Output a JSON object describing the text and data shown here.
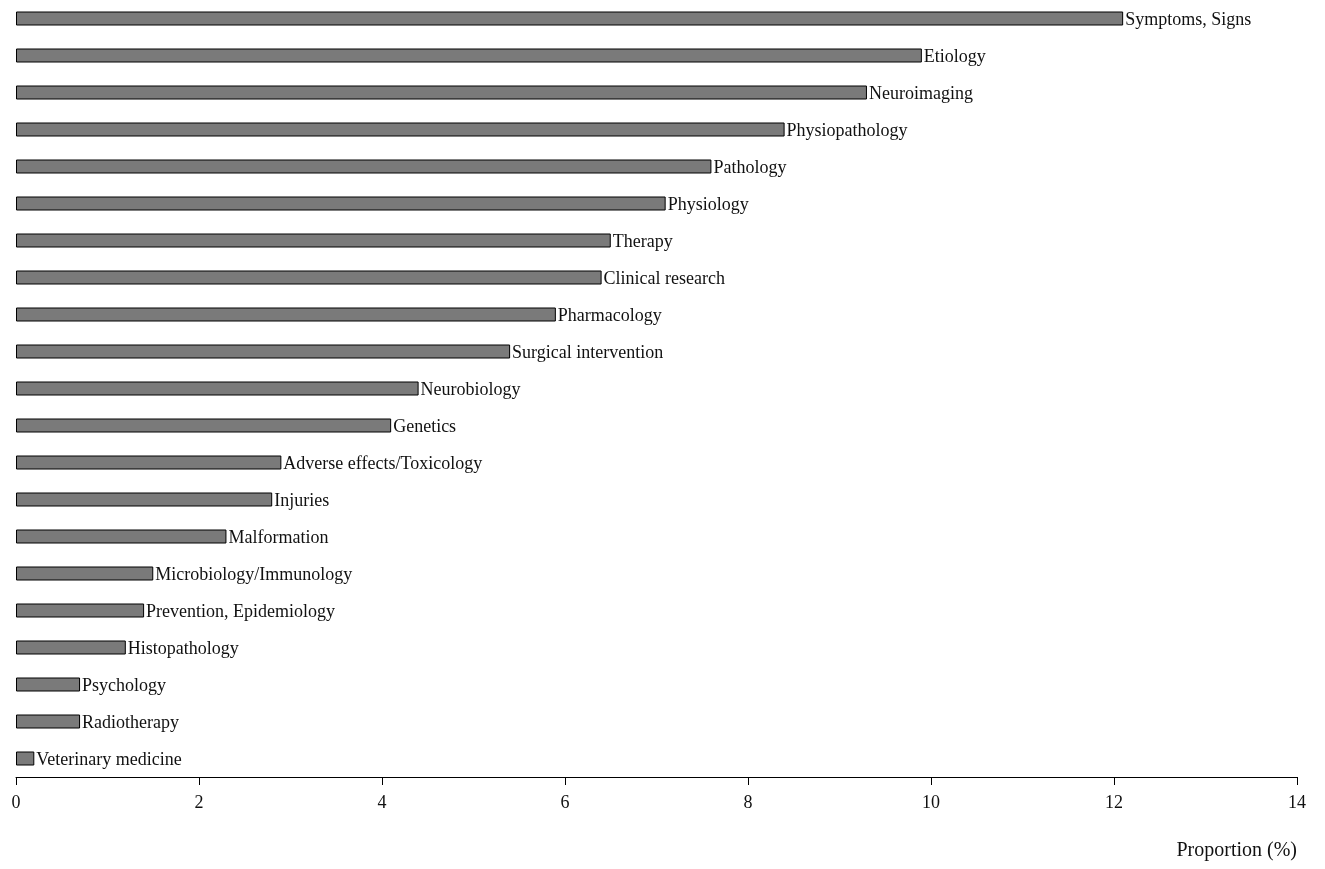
{
  "chart_data": {
    "type": "bar",
    "orientation": "horizontal",
    "xlabel": "Proportion (%)",
    "categories": [
      "Symptoms, Signs",
      "Etiology",
      "Neuroimaging",
      "Physiopathology",
      "Pathology",
      "Physiology",
      "Therapy",
      "Clinical research",
      "Pharmacology",
      "Surgical intervention",
      "Neurobiology",
      "Genetics",
      "Adverse effects/Toxicology",
      "Injuries",
      "Malformation",
      "Microbiology/Immunology",
      "Prevention, Epidemiology",
      "Histopathology",
      "Psychology",
      "Radiotherapy",
      "Veterinary medicine"
    ],
    "values": [
      12.1,
      9.9,
      9.3,
      8.4,
      7.6,
      7.1,
      6.5,
      6.4,
      5.9,
      5.4,
      4.4,
      4.1,
      2.9,
      2.8,
      2.3,
      1.5,
      1.4,
      1.2,
      0.7,
      0.7,
      0.2
    ],
    "color": "#7a7a7a",
    "xlim": [
      0,
      14
    ],
    "xticks": [
      0,
      2,
      4,
      6,
      8,
      10,
      12,
      14
    ],
    "grid": false
  }
}
